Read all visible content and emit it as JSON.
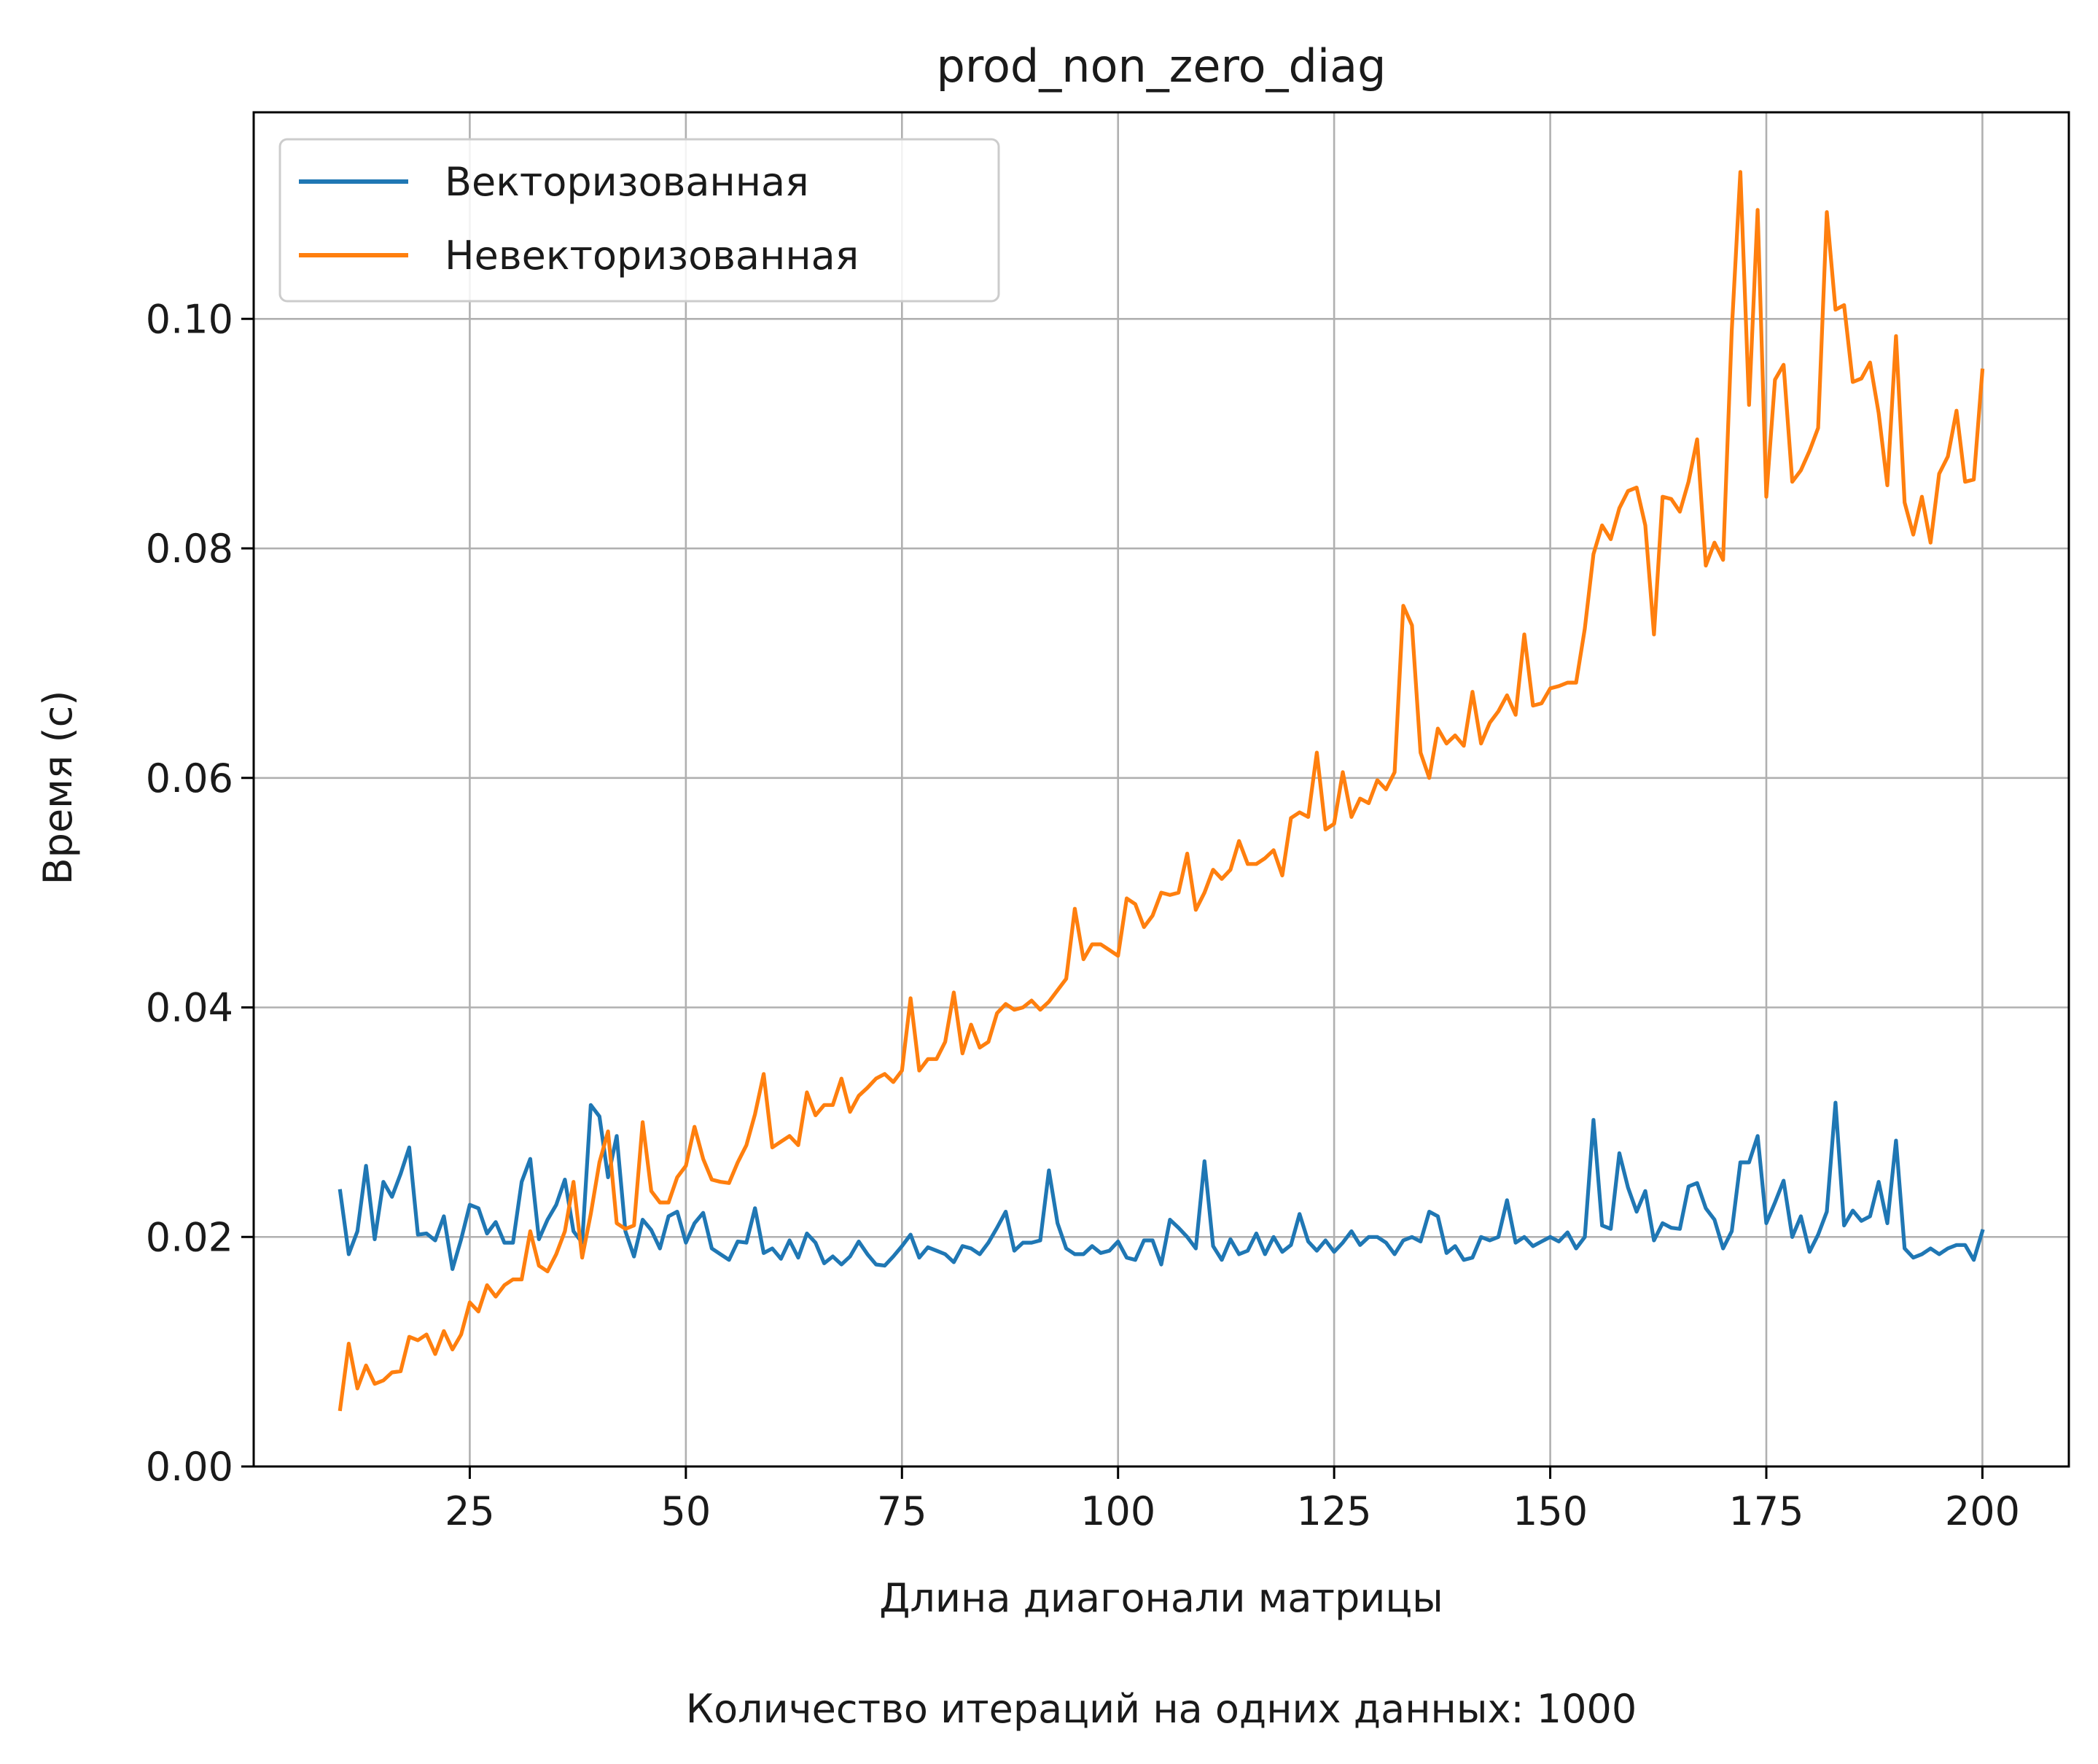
{
  "chart_data": {
    "type": "line",
    "title": "prod_non_zero_diag",
    "xlabel": "Длина диагонали матрицы",
    "ylabel": "Время (с)",
    "footnote": "Количество итераций на одних данных: 1000",
    "xlim": [
      0,
      210
    ],
    "ylim": [
      0,
      0.118
    ],
    "xticks": [
      25,
      50,
      75,
      100,
      125,
      150,
      175,
      200
    ],
    "xtick_labels": [
      "25",
      "50",
      "75",
      "100",
      "125",
      "150",
      "175",
      "200"
    ],
    "yticks": [
      0,
      0.02,
      0.04,
      0.06,
      0.08,
      0.1
    ],
    "ytick_labels": [
      "0.00",
      "0.02",
      "0.04",
      "0.06",
      "0.08",
      "0.10"
    ],
    "grid": true,
    "legend": "top-left",
    "x_start": 10,
    "x_step": 1,
    "series": [
      {
        "name": "Векторизованная",
        "color": "#1f77b4",
        "values": [
          0.024,
          0.0185,
          0.0205,
          0.0262,
          0.0198,
          0.0248,
          0.0235,
          0.0255,
          0.0278,
          0.0202,
          0.0203,
          0.0197,
          0.0218,
          0.0172,
          0.0198,
          0.0228,
          0.0225,
          0.0203,
          0.0213,
          0.0195,
          0.0195,
          0.0248,
          0.0268,
          0.0198,
          0.0215,
          0.0228,
          0.025,
          0.0205,
          0.0195,
          0.0315,
          0.0305,
          0.0252,
          0.0288,
          0.0205,
          0.0183,
          0.0215,
          0.0206,
          0.019,
          0.0218,
          0.0222,
          0.0195,
          0.0212,
          0.0221,
          0.019,
          0.0185,
          0.018,
          0.0196,
          0.0195,
          0.0225,
          0.0186,
          0.019,
          0.0181,
          0.0197,
          0.0182,
          0.0203,
          0.0195,
          0.0177,
          0.0183,
          0.0176,
          0.0183,
          0.0196,
          0.0185,
          0.0176,
          0.0175,
          0.0183,
          0.0192,
          0.0202,
          0.0182,
          0.0191,
          0.0188,
          0.0185,
          0.0178,
          0.0192,
          0.019,
          0.0185,
          0.0195,
          0.0208,
          0.0222,
          0.0188,
          0.0195,
          0.0195,
          0.0197,
          0.0258,
          0.0212,
          0.019,
          0.0185,
          0.0185,
          0.0192,
          0.0186,
          0.0188,
          0.0196,
          0.0182,
          0.018,
          0.0197,
          0.0197,
          0.0176,
          0.0215,
          0.0208,
          0.02,
          0.019,
          0.0266,
          0.0192,
          0.018,
          0.0198,
          0.0185,
          0.0188,
          0.0203,
          0.0185,
          0.02,
          0.0187,
          0.0193,
          0.022,
          0.0196,
          0.0188,
          0.0197,
          0.0187,
          0.0195,
          0.0205,
          0.0193,
          0.02,
          0.02,
          0.0195,
          0.0185,
          0.0197,
          0.02,
          0.0196,
          0.0222,
          0.0218,
          0.0186,
          0.0192,
          0.018,
          0.0182,
          0.02,
          0.0197,
          0.02,
          0.0232,
          0.0195,
          0.02,
          0.0192,
          0.0196,
          0.02,
          0.0196,
          0.0204,
          0.019,
          0.02,
          0.0302,
          0.021,
          0.0207,
          0.0273,
          0.0243,
          0.0222,
          0.024,
          0.0197,
          0.0212,
          0.0208,
          0.0207,
          0.0244,
          0.0247,
          0.0225,
          0.0215,
          0.019,
          0.0205,
          0.0265,
          0.0265,
          0.0288,
          0.0212,
          0.023,
          0.0249,
          0.02,
          0.0218,
          0.0187,
          0.0202,
          0.0222,
          0.0317,
          0.021,
          0.0223,
          0.0214,
          0.0218,
          0.0248,
          0.0212,
          0.0284,
          0.019,
          0.0182,
          0.0185,
          0.019,
          0.0185,
          0.019,
          0.0193,
          0.0193,
          0.018,
          0.0205
        ]
      },
      {
        "name": "Невекторизованная",
        "color": "#ff7f0e",
        "values": [
          0.005,
          0.0107,
          0.0068,
          0.0088,
          0.0072,
          0.0075,
          0.0082,
          0.0083,
          0.0113,
          0.011,
          0.0115,
          0.0098,
          0.0118,
          0.0102,
          0.0115,
          0.0143,
          0.0135,
          0.0158,
          0.0148,
          0.0158,
          0.0163,
          0.0163,
          0.0205,
          0.0175,
          0.017,
          0.0185,
          0.0205,
          0.0248,
          0.0182,
          0.022,
          0.0265,
          0.0292,
          0.0212,
          0.0207,
          0.021,
          0.03,
          0.024,
          0.023,
          0.023,
          0.0252,
          0.0262,
          0.0296,
          0.0268,
          0.025,
          0.0248,
          0.0247,
          0.0265,
          0.028,
          0.0307,
          0.0342,
          0.0278,
          0.0283,
          0.0288,
          0.028,
          0.0326,
          0.0306,
          0.0315,
          0.0315,
          0.0338,
          0.0309,
          0.0323,
          0.033,
          0.0338,
          0.0342,
          0.0335,
          0.0345,
          0.0408,
          0.0345,
          0.0355,
          0.0355,
          0.037,
          0.0413,
          0.036,
          0.0385,
          0.0365,
          0.037,
          0.0395,
          0.0403,
          0.0398,
          0.04,
          0.0406,
          0.0398,
          0.0405,
          0.0415,
          0.0425,
          0.0486,
          0.0442,
          0.0455,
          0.0455,
          0.045,
          0.0445,
          0.0495,
          0.049,
          0.047,
          0.048,
          0.05,
          0.0498,
          0.05,
          0.0534,
          0.0485,
          0.05,
          0.052,
          0.0512,
          0.052,
          0.0545,
          0.0525,
          0.0525,
          0.053,
          0.0537,
          0.0515,
          0.0565,
          0.057,
          0.0566,
          0.0622,
          0.0555,
          0.056,
          0.0605,
          0.0566,
          0.0582,
          0.0578,
          0.0598,
          0.059,
          0.0605,
          0.075,
          0.0733,
          0.0622,
          0.06,
          0.0643,
          0.063,
          0.0637,
          0.0628,
          0.0675,
          0.063,
          0.0648,
          0.0658,
          0.0672,
          0.0655,
          0.0725,
          0.0663,
          0.0665,
          0.0678,
          0.068,
          0.0683,
          0.0683,
          0.073,
          0.0795,
          0.082,
          0.0808,
          0.0835,
          0.085,
          0.0853,
          0.082,
          0.0725,
          0.0845,
          0.0843,
          0.0832,
          0.0858,
          0.0895,
          0.0785,
          0.0805,
          0.079,
          0.099,
          0.1128,
          0.0925,
          0.1095,
          0.0845,
          0.0947,
          0.096,
          0.0858,
          0.0868,
          0.0885,
          0.0905,
          0.1093,
          0.1008,
          0.1012,
          0.0945,
          0.0948,
          0.0962,
          0.0918,
          0.0855,
          0.0985,
          0.084,
          0.0812,
          0.0845,
          0.0805,
          0.0865,
          0.088,
          0.092,
          0.0858,
          0.086,
          0.0955
        ]
      }
    ]
  }
}
